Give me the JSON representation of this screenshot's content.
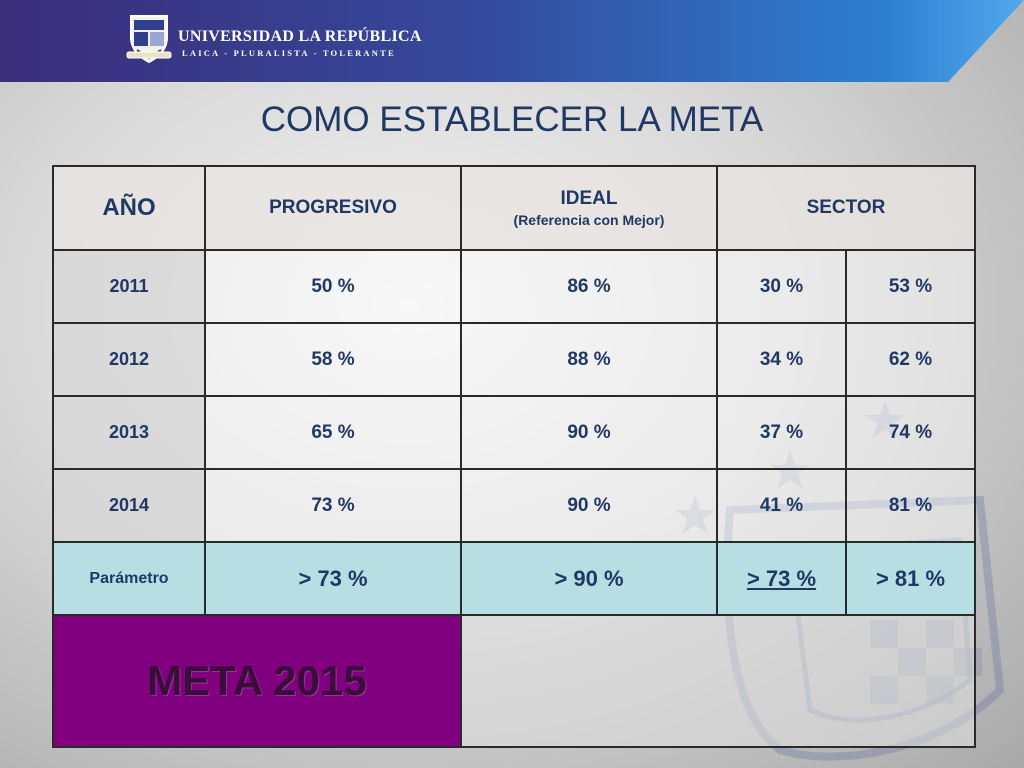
{
  "header": {
    "university_name": "UNIVERSIDAD LA REPÚBLICA",
    "motto": "LAICA - PLURALISTA - TOLERANTE"
  },
  "title": "COMO ESTABLECER LA META",
  "table": {
    "headers": {
      "year": "AÑO",
      "progressive": "PROGRESIVO",
      "ideal": "IDEAL",
      "ideal_sub": "(Referencia con Mejor)",
      "sector": "SECTOR"
    },
    "rows": [
      {
        "year": "2011",
        "progressive": "50 %",
        "ideal": "86 %",
        "sector_a": "30 %",
        "sector_b": "53 %"
      },
      {
        "year": "2012",
        "progressive": "58 %",
        "ideal": "88 %",
        "sector_a": "34 %",
        "sector_b": "62 %"
      },
      {
        "year": "2013",
        "progressive": "65 %",
        "ideal": "90 %",
        "sector_a": "37 %",
        "sector_b": "74 %"
      },
      {
        "year": "2014",
        "progressive": "73 %",
        "ideal": "90 %",
        "sector_a": "41 %",
        "sector_b": "81 %"
      }
    ],
    "parameter": {
      "label": "Parámetro",
      "progressive": "> 73 %",
      "ideal": "> 90 %",
      "sector_a": "> 73 %",
      "sector_b": "> 81 %"
    },
    "goal_label": "META 2015"
  },
  "colors": {
    "header_band": "#35489a",
    "title_text": "#1f3864",
    "parameter_row": "#b7dfe3",
    "goal_cell": "#800080"
  }
}
